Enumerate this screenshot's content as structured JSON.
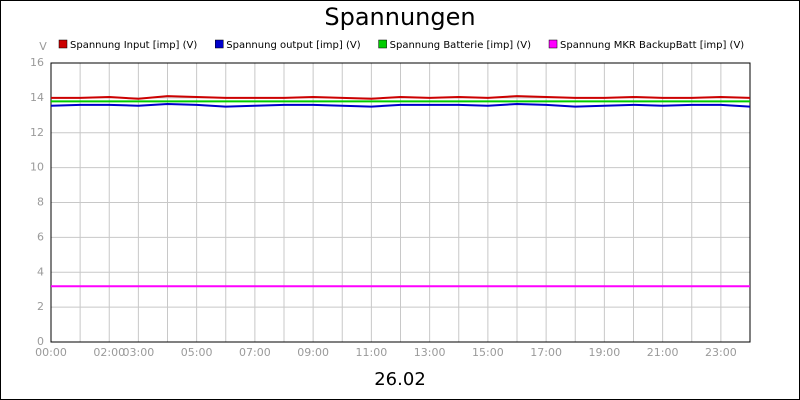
{
  "chart_data": {
    "type": "line",
    "title": "Spannungen",
    "subtitle": "26.02",
    "ylabel": "V",
    "x": [
      0,
      1,
      2,
      3,
      4,
      5,
      6,
      7,
      8,
      9,
      10,
      11,
      12,
      13,
      14,
      15,
      16,
      17,
      18,
      19,
      20,
      21,
      22,
      23,
      24
    ],
    "xlim": [
      0,
      24
    ],
    "xticks": [
      {
        "value": 0,
        "label": "00:00"
      },
      {
        "value": 2,
        "label": "02:00"
      },
      {
        "value": 3,
        "label": "03:00"
      },
      {
        "value": 5,
        "label": "05:00"
      },
      {
        "value": 7,
        "label": "07:00"
      },
      {
        "value": 9,
        "label": "09:00"
      },
      {
        "value": 11,
        "label": "11:00"
      },
      {
        "value": 13,
        "label": "13:00"
      },
      {
        "value": 15,
        "label": "15:00"
      },
      {
        "value": 17,
        "label": "17:00"
      },
      {
        "value": 19,
        "label": "19:00"
      },
      {
        "value": 21,
        "label": "21:00"
      },
      {
        "value": 23,
        "label": "23:00"
      }
    ],
    "xgrid": [
      1,
      4,
      6,
      8,
      10,
      12,
      14,
      16,
      18,
      20,
      22
    ],
    "ylim": [
      0,
      16
    ],
    "yticks": [
      0,
      2,
      4,
      6,
      8,
      10,
      12,
      14,
      16
    ],
    "grid": true,
    "series": [
      {
        "name": "Spannung Input [imp] (V)",
        "color": "#cc0000",
        "values": [
          14.0,
          14.0,
          14.05,
          13.95,
          14.1,
          14.05,
          14.0,
          14.0,
          14.0,
          14.05,
          14.0,
          13.95,
          14.05,
          14.0,
          14.05,
          14.0,
          14.1,
          14.05,
          14.0,
          14.0,
          14.05,
          14.0,
          14.0,
          14.05,
          14.0
        ]
      },
      {
        "name": "Spannung output [imp] (V)",
        "color": "#0000cc",
        "values": [
          13.55,
          13.6,
          13.6,
          13.55,
          13.65,
          13.6,
          13.5,
          13.55,
          13.6,
          13.6,
          13.55,
          13.5,
          13.6,
          13.6,
          13.6,
          13.55,
          13.65,
          13.6,
          13.5,
          13.55,
          13.6,
          13.55,
          13.6,
          13.6,
          13.5
        ]
      },
      {
        "name": "Spannung Batterie [imp] (V)",
        "color": "#00cc00",
        "values": [
          13.8,
          13.8,
          13.8,
          13.8,
          13.8,
          13.8,
          13.8,
          13.8,
          13.8,
          13.8,
          13.8,
          13.8,
          13.8,
          13.8,
          13.8,
          13.8,
          13.8,
          13.8,
          13.8,
          13.8,
          13.8,
          13.8,
          13.8,
          13.8,
          13.8
        ]
      },
      {
        "name": "Spannung MKR BackupBatt [imp] (V)",
        "color": "#ff00ff",
        "values": [
          3.2,
          3.2,
          3.2,
          3.2,
          3.2,
          3.2,
          3.2,
          3.2,
          3.2,
          3.2,
          3.2,
          3.2,
          3.2,
          3.2,
          3.2,
          3.2,
          3.2,
          3.2,
          3.2,
          3.2,
          3.2,
          3.2,
          3.2,
          3.2,
          3.2
        ]
      }
    ]
  }
}
